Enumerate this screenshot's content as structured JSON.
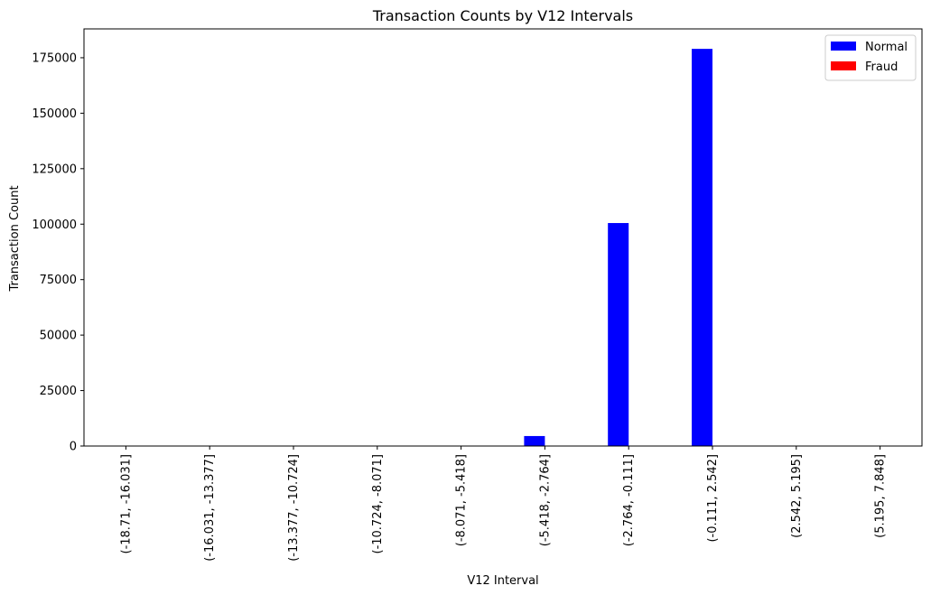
{
  "chart_data": {
    "type": "bar",
    "title": "Transaction Counts by V12 Intervals",
    "xlabel": "V12 Interval",
    "ylabel": "Transaction Count",
    "categories": [
      "(-18.71, -16.031]",
      "(-16.031, -13.377]",
      "(-13.377, -10.724]",
      "(-10.724, -8.071]",
      "(-8.071, -5.418]",
      "(-5.418, -2.764]",
      "(-2.764, -0.111]",
      "(-0.111, 2.542]",
      "(2.542, 5.195]",
      "(5.195, 7.848]"
    ],
    "series": [
      {
        "name": "Normal",
        "color": "#0000ff",
        "values": [
          0,
          0,
          0,
          0,
          0,
          4500,
          100500,
          179000,
          0,
          0
        ]
      },
      {
        "name": "Fraud",
        "color": "#ff0000",
        "values": [
          0,
          0,
          0,
          0,
          0,
          0,
          0,
          0,
          0,
          0
        ]
      }
    ],
    "ylim": [
      0,
      188000
    ],
    "yticks": [
      0,
      25000,
      50000,
      75000,
      100000,
      125000,
      150000,
      175000
    ],
    "grid": false,
    "legend_position": "top-right"
  }
}
